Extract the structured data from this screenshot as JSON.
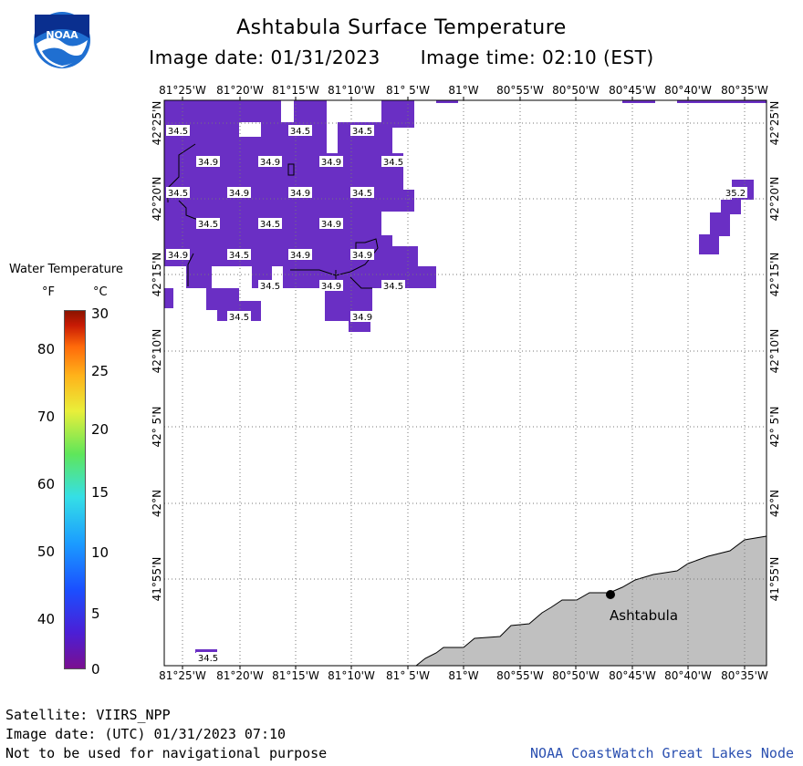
{
  "title": "Ashtabula Surface Temperature",
  "image_date_label": "Image date: 01/31/2023",
  "image_time_label": "Image time: 02:10 (EST)",
  "legend": {
    "title": "Water Temperature",
    "unit_f": "°F",
    "unit_c": "°C",
    "fahrenheit_ticks": [
      "80",
      "70",
      "60",
      "50",
      "40"
    ],
    "celsius_ticks": [
      "30",
      "25",
      "20",
      "15",
      "10",
      "5",
      "0"
    ],
    "colors": {
      "low": "#7a0f8f",
      "mid": "#5fe65a",
      "high": "#8a1400"
    }
  },
  "map": {
    "lon_labels": [
      "81°25'W",
      "81°20'W",
      "81°15'W",
      "81°10'W",
      "81° 5'W",
      "81°W",
      "80°55'W",
      "80°50'W",
      "80°45'W",
      "80°40'W",
      "80°35'W"
    ],
    "lat_labels": [
      "42°25'N",
      "42°20'N",
      "42°15'N",
      "42°10'N",
      "42° 5'N",
      "42°N",
      "41°55'N"
    ],
    "water_color": "#6a2fc4",
    "land_color": "#c0c0c0",
    "city": {
      "name": "Ashtabula"
    },
    "temperature_labels": [
      "34.5",
      "34.5",
      "34.5",
      "34.9",
      "34.9",
      "34.9",
      "34.5",
      "34.5",
      "34.9",
      "34.9",
      "34.5",
      "35.2",
      "34.5",
      "34.5",
      "34.9",
      "34.9",
      "34.5",
      "34.9",
      "34.9",
      "34.5",
      "34.9",
      "34.5",
      "34.5",
      "34.9",
      "34.5"
    ]
  },
  "footer": {
    "satellite": "Satellite: VIIRS_NPP",
    "utc_date": "Image date: (UTC) 01/31/2023  07:10",
    "note": "Not to be used for navigational purpose",
    "credit": "NOAA CoastWatch Great Lakes Node"
  }
}
